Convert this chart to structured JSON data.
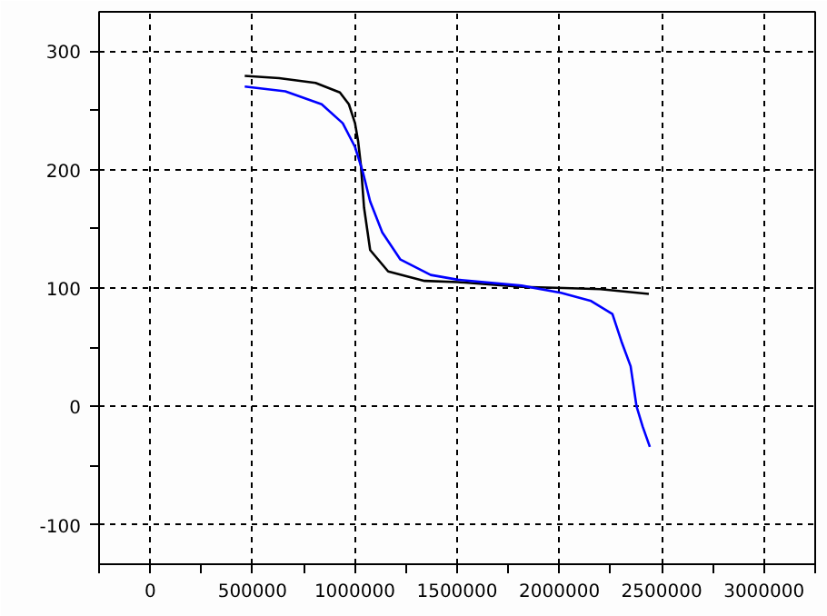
{
  "chart_data": {
    "type": "line",
    "xlim": [
      -250000,
      3250000
    ],
    "ylim": [
      -133,
      333
    ],
    "xticks": [
      {
        "value": -250000,
        "label": null
      },
      0,
      {
        "value": 250000,
        "label": null
      },
      500000,
      {
        "value": 750000,
        "label": null
      },
      1000000,
      {
        "value": 1250000,
        "label": null
      },
      1500000,
      {
        "value": 1750000,
        "label": null
      },
      2000000,
      {
        "value": 2250000,
        "label": null
      },
      2500000,
      {
        "value": 2750000,
        "label": null
      },
      3000000,
      {
        "value": 3250000,
        "label": null
      }
    ],
    "yticks": [
      -100,
      {
        "value": -50,
        "label": null
      },
      0,
      {
        "value": 50,
        "label": null
      },
      100,
      {
        "value": 150,
        "label": null
      },
      200,
      {
        "value": 250,
        "label": null
      },
      300
    ],
    "grid": true,
    "line_style": "solid",
    "series": [
      {
        "color": "#000000",
        "x": [
          462000,
          630000,
          808000,
          927000,
          971000,
          1001000,
          1016000,
          1030000,
          1045000,
          1075000,
          1163000,
          1341000,
          1504000,
          1815000,
          2022000,
          2200000,
          2437000
        ],
        "values": [
          279,
          277,
          273,
          265,
          255,
          239,
          224,
          203,
          168,
          132,
          114,
          106,
          105,
          101,
          100,
          99,
          95
        ]
      },
      {
        "color": "#0000ff",
        "x": [
          462000,
          660000,
          838000,
          941000,
          1001000,
          1039000,
          1075000,
          1134000,
          1223000,
          1371000,
          1504000,
          1815000,
          2007000,
          2155000,
          2259000,
          2303000,
          2348000,
          2377000,
          2407000,
          2442000
        ],
        "values": [
          270,
          266,
          255,
          239,
          219,
          198,
          173,
          147,
          124,
          111,
          107,
          102,
          96,
          89,
          78,
          55,
          34,
          0,
          -17,
          -34
        ]
      }
    ]
  }
}
